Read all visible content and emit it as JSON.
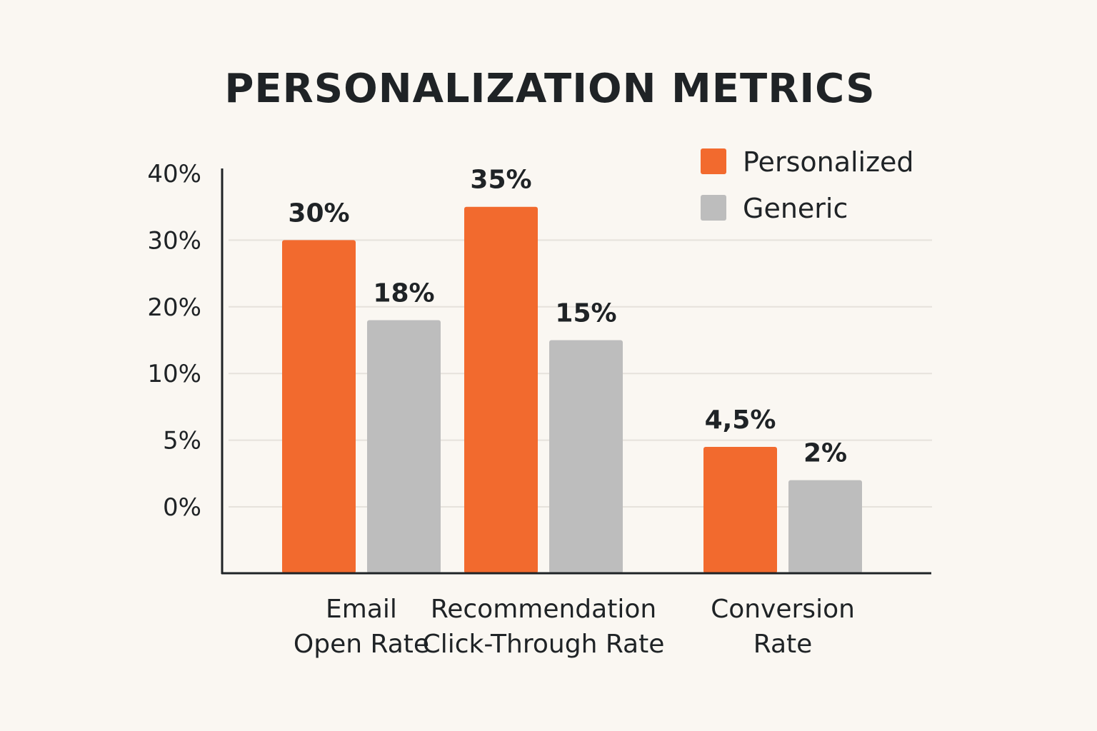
{
  "chart_data": {
    "type": "bar",
    "title": "PERSONALIZATION METRICS",
    "xlabel": "",
    "ylabel": "",
    "categories": [
      [
        "Email",
        "Open Rate"
      ],
      [
        "Recommendation",
        "Click-Through Rate"
      ],
      [
        "Conversion",
        "Rate"
      ]
    ],
    "y_ticks": [
      {
        "value": 0,
        "label": "0%"
      },
      {
        "value": 5,
        "label": "5%"
      },
      {
        "value": 10,
        "label": "10%"
      },
      {
        "value": 20,
        "label": "20%"
      },
      {
        "value": 30,
        "label": "30%"
      },
      {
        "value": 40,
        "label": "40%"
      }
    ],
    "ylim": [
      0,
      40
    ],
    "grid": true,
    "legend_position": "top-right",
    "series": [
      {
        "name": "Personalized",
        "color": "#f26a2e",
        "values": [
          30,
          35,
          4.5
        ],
        "labels": [
          "30%",
          "35%",
          "4,5%"
        ]
      },
      {
        "name": "Generic",
        "color": "#bdbdbd",
        "values": [
          18,
          15,
          2
        ],
        "labels": [
          "18%",
          "15%",
          "2%"
        ]
      }
    ]
  }
}
